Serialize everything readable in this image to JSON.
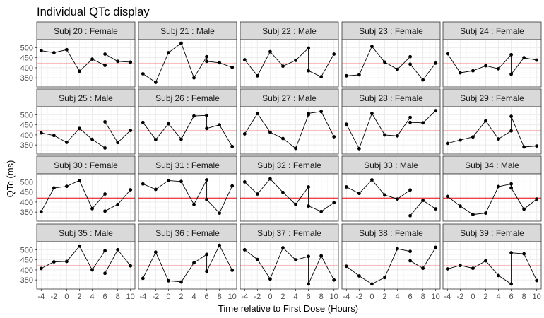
{
  "chart_data": {
    "type": "line",
    "title": "Individual QTc display",
    "xlabel": "Time relative to First Dose (Hours)",
    "ylabel": "QTc (ms)",
    "xlim": [
      -4.7,
      10.7
    ],
    "ylim": [
      305,
      540
    ],
    "xticks": [
      -4,
      -2,
      0,
      2,
      4,
      6,
      8,
      10
    ],
    "yticks": [
      350,
      400,
      450,
      500
    ],
    "reference_line": 420,
    "grid": true,
    "facets": [
      {
        "label": "Subj 20 : Female",
        "points": [
          [
            -4,
            485
          ],
          [
            -2,
            475
          ],
          [
            0,
            490
          ],
          [
            2,
            383
          ],
          [
            4,
            443
          ],
          [
            6,
            412
          ],
          [
            6,
            468
          ],
          [
            8,
            432
          ],
          [
            10,
            428
          ]
        ]
      },
      {
        "label": "Subj 21 : Male",
        "points": [
          [
            -4,
            370
          ],
          [
            -2,
            328
          ],
          [
            0,
            475
          ],
          [
            2,
            522
          ],
          [
            4,
            350
          ],
          [
            6,
            455
          ],
          [
            6,
            432
          ],
          [
            8,
            425
          ],
          [
            10,
            402
          ]
        ]
      },
      {
        "label": "Subj 22 : Male",
        "points": [
          [
            -4,
            440
          ],
          [
            -2,
            360
          ],
          [
            0,
            480
          ],
          [
            2,
            408
          ],
          [
            4,
            437
          ],
          [
            6,
            498
          ],
          [
            6,
            385
          ],
          [
            8,
            355
          ],
          [
            10,
            468
          ]
        ]
      },
      {
        "label": "Subj 23 : Female",
        "points": [
          [
            -4,
            360
          ],
          [
            -2,
            365
          ],
          [
            0,
            506
          ],
          [
            2,
            428
          ],
          [
            4,
            392
          ],
          [
            6,
            455
          ],
          [
            6,
            418
          ],
          [
            8,
            340
          ],
          [
            10,
            423
          ]
        ]
      },
      {
        "label": "Subj 24 : Female",
        "points": [
          [
            -4,
            470
          ],
          [
            -2,
            375
          ],
          [
            0,
            385
          ],
          [
            2,
            410
          ],
          [
            4,
            395
          ],
          [
            6,
            465
          ],
          [
            6,
            368
          ],
          [
            8,
            450
          ],
          [
            10,
            438
          ]
        ]
      },
      {
        "label": "Subj 25 : Male",
        "points": [
          [
            -4,
            410
          ],
          [
            -2,
            397
          ],
          [
            0,
            363
          ],
          [
            2,
            432
          ],
          [
            4,
            378
          ],
          [
            6,
            335
          ],
          [
            6,
            465
          ],
          [
            8,
            362
          ],
          [
            10,
            422
          ]
        ]
      },
      {
        "label": "Subj 26 : Female",
        "points": [
          [
            -4,
            462
          ],
          [
            -2,
            377
          ],
          [
            0,
            455
          ],
          [
            2,
            379
          ],
          [
            4,
            494
          ],
          [
            6,
            497
          ],
          [
            6,
            432
          ],
          [
            8,
            450
          ],
          [
            10,
            342
          ]
        ]
      },
      {
        "label": "Subj 27 : Male",
        "points": [
          [
            -4,
            405
          ],
          [
            -2,
            506
          ],
          [
            0,
            413
          ],
          [
            2,
            382
          ],
          [
            4,
            333
          ],
          [
            6,
            500
          ],
          [
            6,
            507
          ],
          [
            8,
            516
          ],
          [
            10,
            391
          ]
        ]
      },
      {
        "label": "Subj 28 : Female",
        "points": [
          [
            -4,
            453
          ],
          [
            -2,
            332
          ],
          [
            0,
            507
          ],
          [
            2,
            400
          ],
          [
            4,
            395
          ],
          [
            6,
            487
          ],
          [
            6,
            462
          ],
          [
            8,
            460
          ],
          [
            10,
            520
          ]
        ]
      },
      {
        "label": "Subj 29 : Female",
        "points": [
          [
            -4,
            358
          ],
          [
            -2,
            375
          ],
          [
            0,
            390
          ],
          [
            2,
            470
          ],
          [
            4,
            380
          ],
          [
            6,
            420
          ],
          [
            6,
            492
          ],
          [
            8,
            340
          ],
          [
            10,
            345
          ]
        ]
      },
      {
        "label": "Subj 30 : Female",
        "points": [
          [
            -4,
            352
          ],
          [
            -2,
            470
          ],
          [
            0,
            478
          ],
          [
            2,
            507
          ],
          [
            4,
            367
          ],
          [
            6,
            440
          ],
          [
            6,
            355
          ],
          [
            8,
            388
          ],
          [
            10,
            461
          ]
        ]
      },
      {
        "label": "Subj 31 : Female",
        "points": [
          [
            -4,
            490
          ],
          [
            -2,
            463
          ],
          [
            0,
            507
          ],
          [
            2,
            502
          ],
          [
            4,
            388
          ],
          [
            6,
            510
          ],
          [
            6,
            412
          ],
          [
            8,
            345
          ],
          [
            10,
            480
          ]
        ]
      },
      {
        "label": "Subj 32 : Female",
        "points": [
          [
            -4,
            500
          ],
          [
            -2,
            440
          ],
          [
            0,
            515
          ],
          [
            2,
            448
          ],
          [
            4,
            388
          ],
          [
            6,
            475
          ],
          [
            6,
            380
          ],
          [
            8,
            353
          ],
          [
            10,
            397
          ]
        ]
      },
      {
        "label": "Subj 33 : Male",
        "points": [
          [
            -4,
            475
          ],
          [
            -2,
            443
          ],
          [
            0,
            510
          ],
          [
            2,
            435
          ],
          [
            4,
            415
          ],
          [
            6,
            460
          ],
          [
            6,
            332
          ],
          [
            8,
            408
          ],
          [
            10,
            366
          ]
        ]
      },
      {
        "label": "Subj 34 : Male",
        "points": [
          [
            -4,
            428
          ],
          [
            -2,
            380
          ],
          [
            0,
            338
          ],
          [
            2,
            345
          ],
          [
            4,
            477
          ],
          [
            6,
            490
          ],
          [
            6,
            470
          ],
          [
            8,
            365
          ],
          [
            10,
            415
          ]
        ]
      },
      {
        "label": "Subj 35 : Male",
        "points": [
          [
            -4,
            407
          ],
          [
            -2,
            440
          ],
          [
            0,
            442
          ],
          [
            2,
            518
          ],
          [
            4,
            400
          ],
          [
            6,
            495
          ],
          [
            6,
            383
          ],
          [
            8,
            500
          ],
          [
            10,
            420
          ]
        ]
      },
      {
        "label": "Subj 36 : Female",
        "points": [
          [
            -4,
            358
          ],
          [
            -2,
            488
          ],
          [
            0,
            346
          ],
          [
            2,
            340
          ],
          [
            4,
            435
          ],
          [
            6,
            477
          ],
          [
            6,
            393
          ],
          [
            8,
            522
          ],
          [
            10,
            398
          ]
        ]
      },
      {
        "label": "Subj 37 : Female",
        "points": [
          [
            -4,
            500
          ],
          [
            -2,
            452
          ],
          [
            0,
            355
          ],
          [
            2,
            510
          ],
          [
            4,
            450
          ],
          [
            6,
            467
          ],
          [
            6,
            330
          ],
          [
            8,
            470
          ],
          [
            10,
            350
          ]
        ]
      },
      {
        "label": "Subj 38 : Female",
        "points": [
          [
            -4,
            418
          ],
          [
            -2,
            370
          ],
          [
            0,
            330
          ],
          [
            2,
            362
          ],
          [
            4,
            505
          ],
          [
            6,
            492
          ],
          [
            6,
            445
          ],
          [
            8,
            408
          ],
          [
            10,
            512
          ]
        ]
      },
      {
        "label": "Subj 39 : Female",
        "points": [
          [
            -4,
            405
          ],
          [
            -2,
            422
          ],
          [
            0,
            408
          ],
          [
            2,
            445
          ],
          [
            4,
            372
          ],
          [
            6,
            330
          ],
          [
            6,
            485
          ],
          [
            8,
            480
          ],
          [
            10,
            347
          ]
        ]
      }
    ],
    "colors": {
      "panel_bg": "#ffffff",
      "panel_border": "#333333",
      "strip_bg": "#d9d9d9",
      "grid_major": "#ebebeb",
      "grid_minor": "#f5f5f5",
      "reference_line": "#e8000b",
      "series": "#000000"
    }
  }
}
